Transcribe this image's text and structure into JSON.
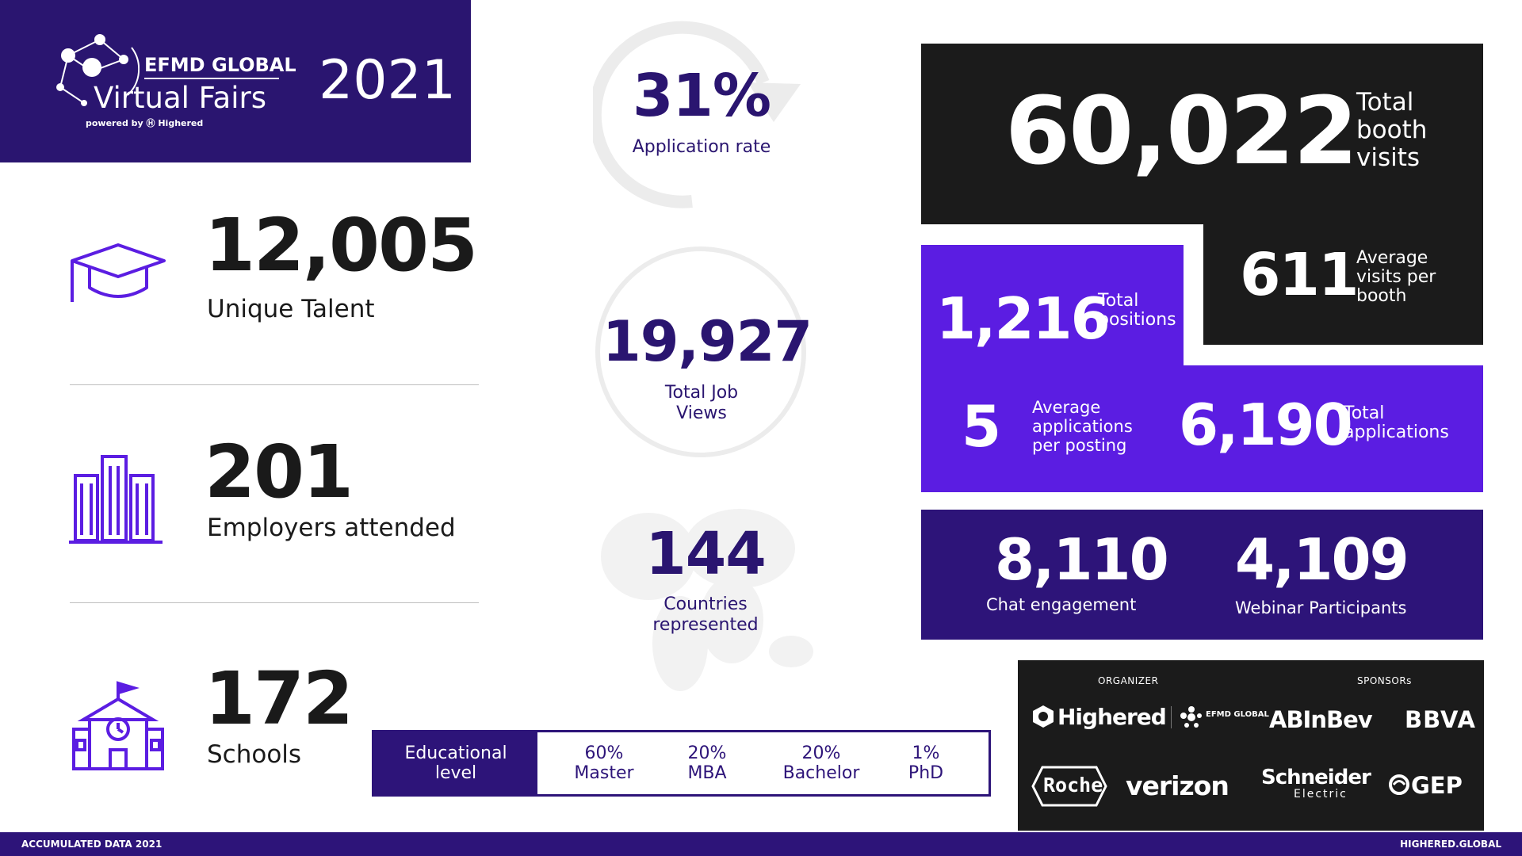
{
  "header": {
    "brand_top": "EFMD GLOBAL",
    "brand_main": "Virtual Fairs",
    "powered_by": "powered by Ⓗ Highered",
    "year": "2021"
  },
  "left_stats": [
    {
      "value": "12,005",
      "label": "Unique Talent",
      "icon": "graduation-cap-icon"
    },
    {
      "value": "201",
      "label": "Employers attended",
      "icon": "buildings-icon"
    },
    {
      "value": "172",
      "label": "Schools",
      "icon": "school-icon"
    }
  ],
  "middle_stats": {
    "application_rate": {
      "value": "31%",
      "label": "Application rate"
    },
    "job_views": {
      "value": "19,927",
      "label_line1": "Total Job",
      "label_line2": "Views"
    },
    "countries": {
      "value": "144",
      "label_line1": "Countries",
      "label_line2": "represented"
    }
  },
  "right_stats": {
    "booth_visits": {
      "value": "60,022",
      "label_line1": "Total",
      "label_line2": "booth",
      "label_line3": "visits"
    },
    "avg_visits": {
      "value": "611",
      "label_line1": "Average",
      "label_line2": "visits per",
      "label_line3": "booth"
    },
    "positions": {
      "value": "1,216",
      "label_line1": "Total",
      "label_line2": "positions"
    },
    "avg_applications": {
      "value": "5",
      "label_line1": "Average",
      "label_line2": "applications",
      "label_line3": "per posting"
    },
    "applications": {
      "value": "6,190",
      "label_line1": "Total",
      "label_line2": "applications"
    },
    "chat": {
      "value": "8,110",
      "label": "Chat engagement"
    },
    "webinar": {
      "value": "4,109",
      "label": "Webinar Participants"
    }
  },
  "education": {
    "heading_line1": "Educational",
    "heading_line2": "level",
    "levels": [
      {
        "pct": "60%",
        "name": "Master"
      },
      {
        "pct": "20%",
        "name": "MBA"
      },
      {
        "pct": "20%",
        "name": "Bachelor"
      },
      {
        "pct": "1%",
        "name": "PhD"
      }
    ]
  },
  "sponsors": {
    "organizer_caption": "ORGANIZER",
    "sponsors_caption": "SPONSORs",
    "organizer_logos": [
      "Highered",
      "EFMD GLOBAL"
    ],
    "sponsor_logos": [
      "ABInBev",
      "BBVA",
      "Roche",
      "verizon",
      "Schneider",
      "Electric",
      "GEP"
    ]
  },
  "footer": {
    "left": "ACCUMULATED DATA 2021",
    "right": "HIGHERED.GLOBAL"
  },
  "colors": {
    "indigo": "#2d1479",
    "violet": "#5b1de2",
    "dark": "#1b1b1b",
    "icon_purple": "#5b1de2"
  }
}
